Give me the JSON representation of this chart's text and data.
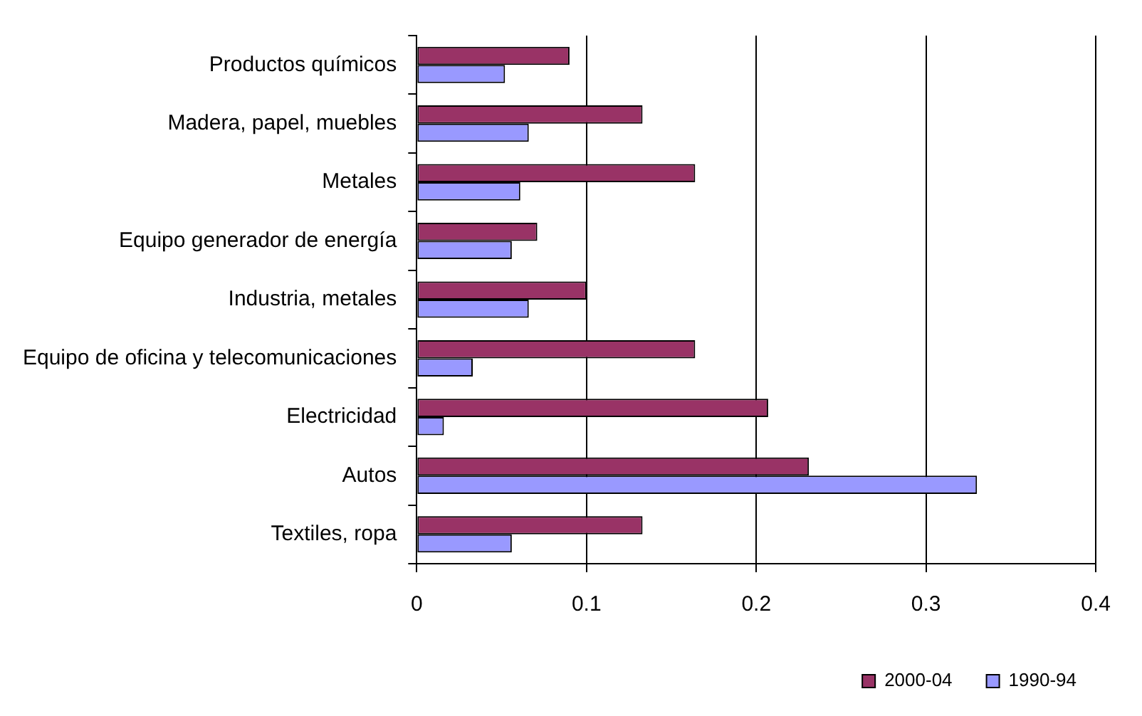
{
  "chart_data": {
    "type": "bar",
    "orientation": "horizontal",
    "categories": [
      "Productos químicos",
      "Madera, papel, muebles",
      "Metales",
      "Equipo generador de energía",
      "Industria, metales",
      "Equipo de oficina y telecomunicaciones",
      "Electricidad",
      "Autos",
      "Textiles, ropa"
    ],
    "series": [
      {
        "name": "2000-04",
        "color": "#993366",
        "values": [
          0.09,
          0.133,
          0.164,
          0.071,
          0.1,
          0.164,
          0.207,
          0.231,
          0.133
        ]
      },
      {
        "name": "1990-94",
        "color": "#9999ff",
        "values": [
          0.052,
          0.066,
          0.061,
          0.056,
          0.066,
          0.033,
          0.016,
          0.33,
          0.056
        ]
      }
    ],
    "xlim": [
      0,
      0.4
    ],
    "xticks": [
      0,
      0.1,
      0.2,
      0.3,
      0.4
    ],
    "grid": "x",
    "legend": "bottom right"
  }
}
